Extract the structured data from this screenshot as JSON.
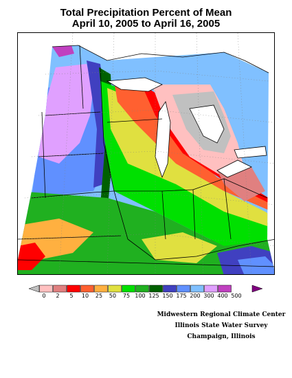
{
  "title_line1": "Total Precipitation Percent of Mean",
  "title_line2": "April 10, 2005 to April 16, 2005",
  "legend": {
    "labels": [
      "0",
      "2",
      "5",
      "10",
      "25",
      "50",
      "75",
      "100",
      "125",
      "150",
      "175",
      "200",
      "300",
      "400",
      "500"
    ],
    "colors": [
      "#c0c0c0",
      "#ffc0c0",
      "#e08080",
      "#ff0000",
      "#ff6030",
      "#ffb040",
      "#e0e040",
      "#00e000",
      "#20b020",
      "#006000",
      "#4040c0",
      "#6090ff",
      "#80c0ff",
      "#e0a0ff",
      "#c040c0",
      "#800080"
    ]
  },
  "credits": [
    "Midwestern Regional Climate Center",
    "Illinois State Water Survey",
    "Champaign, Illinois"
  ]
}
